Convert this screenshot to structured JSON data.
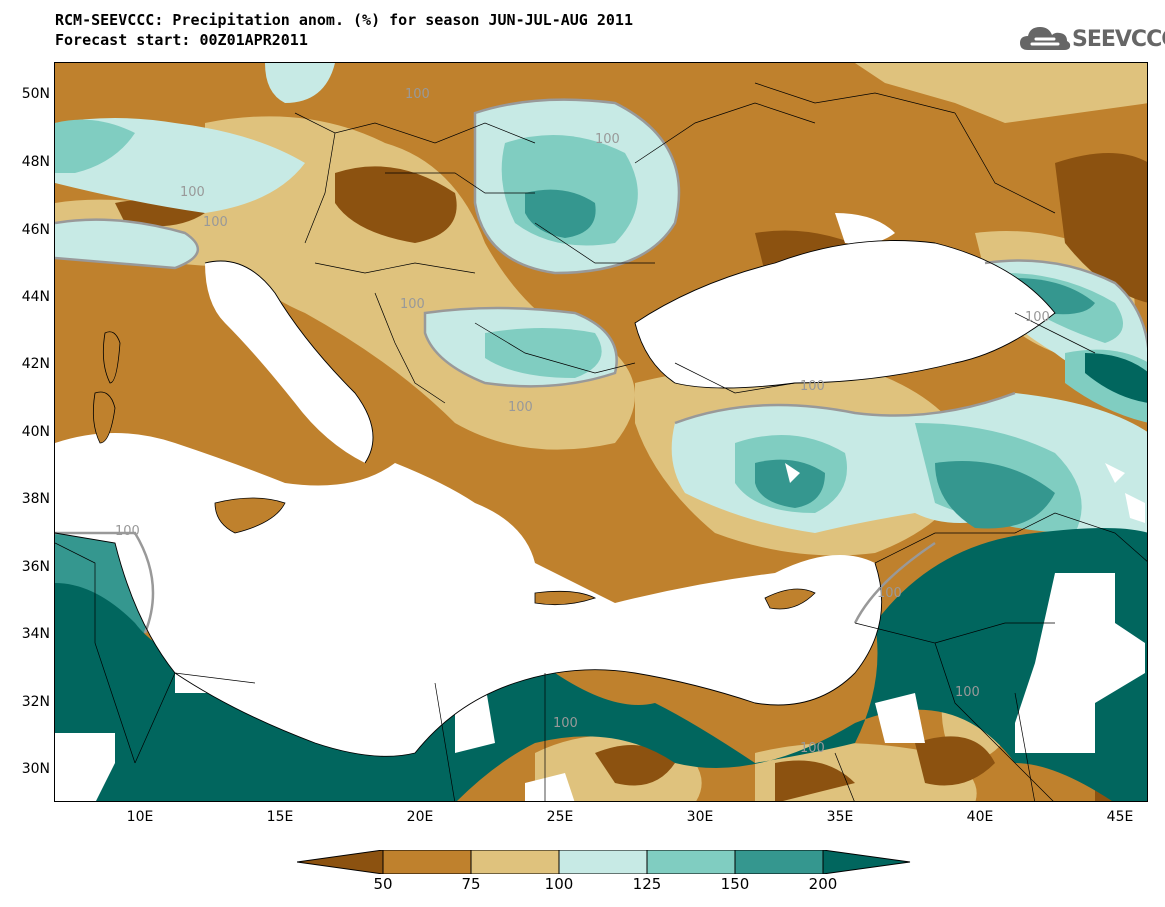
{
  "header": {
    "title_line1": "RCM-SEEVCCC: Precipitation anom. (%) for season JUN-JUL-AUG 2011",
    "title_line2": "Forecast start: 00Z01APR2011"
  },
  "logo": {
    "text": "SEEVCCC",
    "icon": "cloud-icon"
  },
  "map": {
    "lat_labels": [
      "50N",
      "48N",
      "46N",
      "44N",
      "42N",
      "40N",
      "38N",
      "36N",
      "34N",
      "32N",
      "30N"
    ],
    "lon_labels": [
      "10E",
      "15E",
      "20E",
      "25E",
      "30E",
      "35E",
      "40E",
      "45E"
    ],
    "contour_label": "100",
    "contour_labels": [
      "100",
      "100",
      "100",
      "100",
      "100",
      "100",
      "100",
      "100",
      "100",
      "100",
      "100",
      "100",
      "100"
    ]
  },
  "legend": {
    "tick_labels": [
      "50",
      "75",
      "100",
      "125",
      "150",
      "200"
    ],
    "colors": {
      "below_50": "#8c5210",
      "50_75": "#bf812d",
      "75_100": "#dfc27d",
      "100_125": "#c7eae5",
      "125_150": "#80cdc1",
      "150_200": "#35978f",
      "above_200": "#01665e"
    }
  }
}
